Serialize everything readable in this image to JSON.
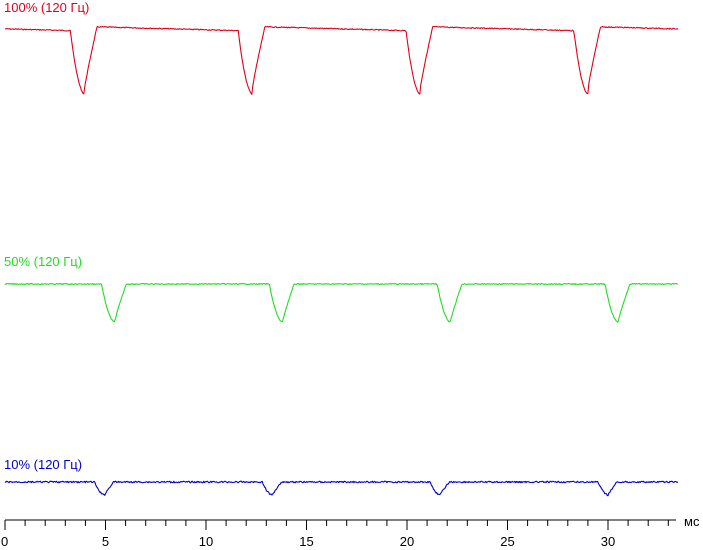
{
  "chart_data": {
    "type": "line",
    "title": "",
    "xlabel": "мс",
    "ylabel": "",
    "xlim": [
      0,
      33.5
    ],
    "x_ticks": [
      0,
      5,
      10,
      15,
      20,
      25,
      30
    ],
    "x_tick_labels": [
      "0",
      "5",
      "10",
      "15",
      "20",
      "25",
      "30"
    ],
    "x_minor_step": 1,
    "grid": false,
    "legend": "none",
    "series": [
      {
        "name": "100% (120 Гц)",
        "color": "#e0001b",
        "period_ms": 8.33,
        "dip_times_ms": [
          3.95,
          12.3,
          20.65,
          29.0
        ],
        "dip_width_ms": 0.7,
        "dip_depth": 0.85
      },
      {
        "name": "50% (120 Гц)",
        "color": "#22dd22",
        "period_ms": 8.33,
        "dip_times_ms": [
          5.45,
          13.8,
          22.15,
          30.5
        ],
        "dip_width_ms": 0.65,
        "dip_depth": 0.55
      },
      {
        "name": "10% (120 Гц)",
        "color": "#0000cc",
        "period_ms": 8.33,
        "dip_times_ms": [
          4.95,
          13.3,
          21.65,
          30.0
        ],
        "dip_width_ms": 0.5,
        "dip_depth": 0.18
      }
    ]
  }
}
